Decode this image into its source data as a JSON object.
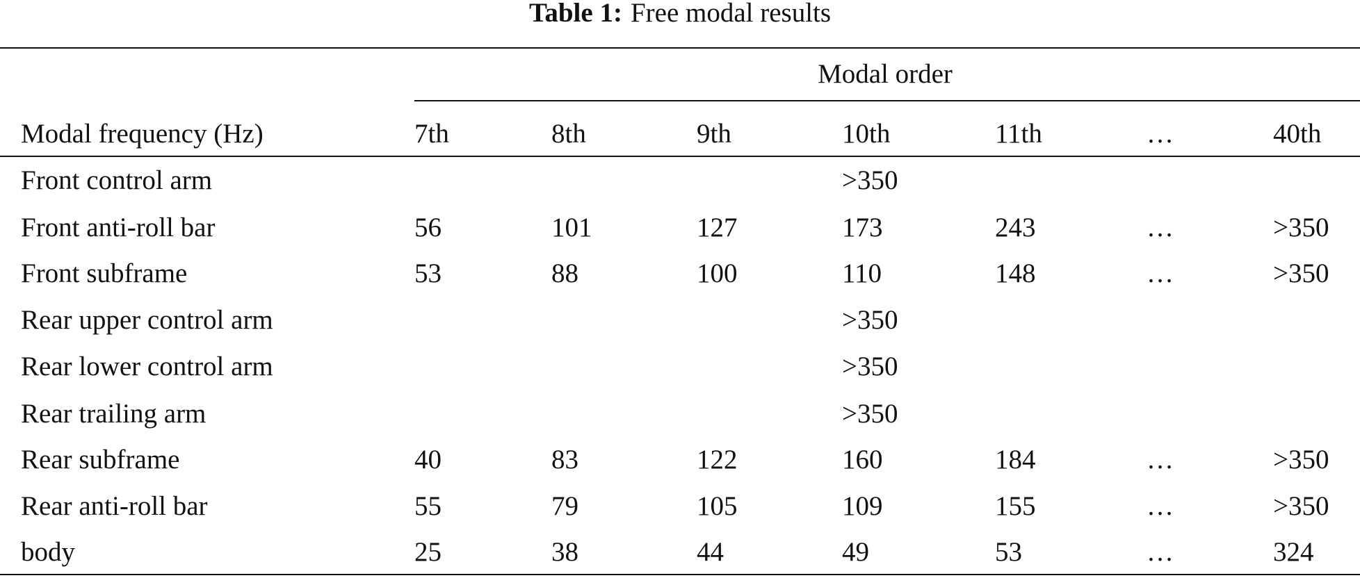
{
  "table": {
    "caption_label": "Table 1:",
    "caption": "Free modal results",
    "group_header": "Modal order",
    "row_header": "Modal frequency (Hz)",
    "columns": [
      "7th",
      "8th",
      "9th",
      "10th",
      "11th",
      "…",
      "40th"
    ],
    "rows": [
      {
        "label": "Front control arm",
        "merged": ">350"
      },
      {
        "label": "Front anti-roll bar",
        "values": [
          56,
          101,
          127,
          173,
          243,
          "…",
          ">350"
        ]
      },
      {
        "label": "Front subframe",
        "values": [
          53,
          88,
          100,
          110,
          148,
          "…",
          ">350"
        ]
      },
      {
        "label": "Rear upper control arm",
        "merged": ">350"
      },
      {
        "label": "Rear lower control arm",
        "merged": ">350"
      },
      {
        "label": "Rear trailing arm",
        "merged": ">350"
      },
      {
        "label": "Rear subframe",
        "values": [
          40,
          83,
          122,
          160,
          184,
          "…",
          ">350"
        ]
      },
      {
        "label": "Rear anti-roll bar",
        "values": [
          55,
          79,
          105,
          109,
          155,
          "…",
          ">350"
        ]
      },
      {
        "label": "body",
        "values": [
          25,
          38,
          44,
          49,
          53,
          "…",
          324
        ]
      }
    ]
  }
}
